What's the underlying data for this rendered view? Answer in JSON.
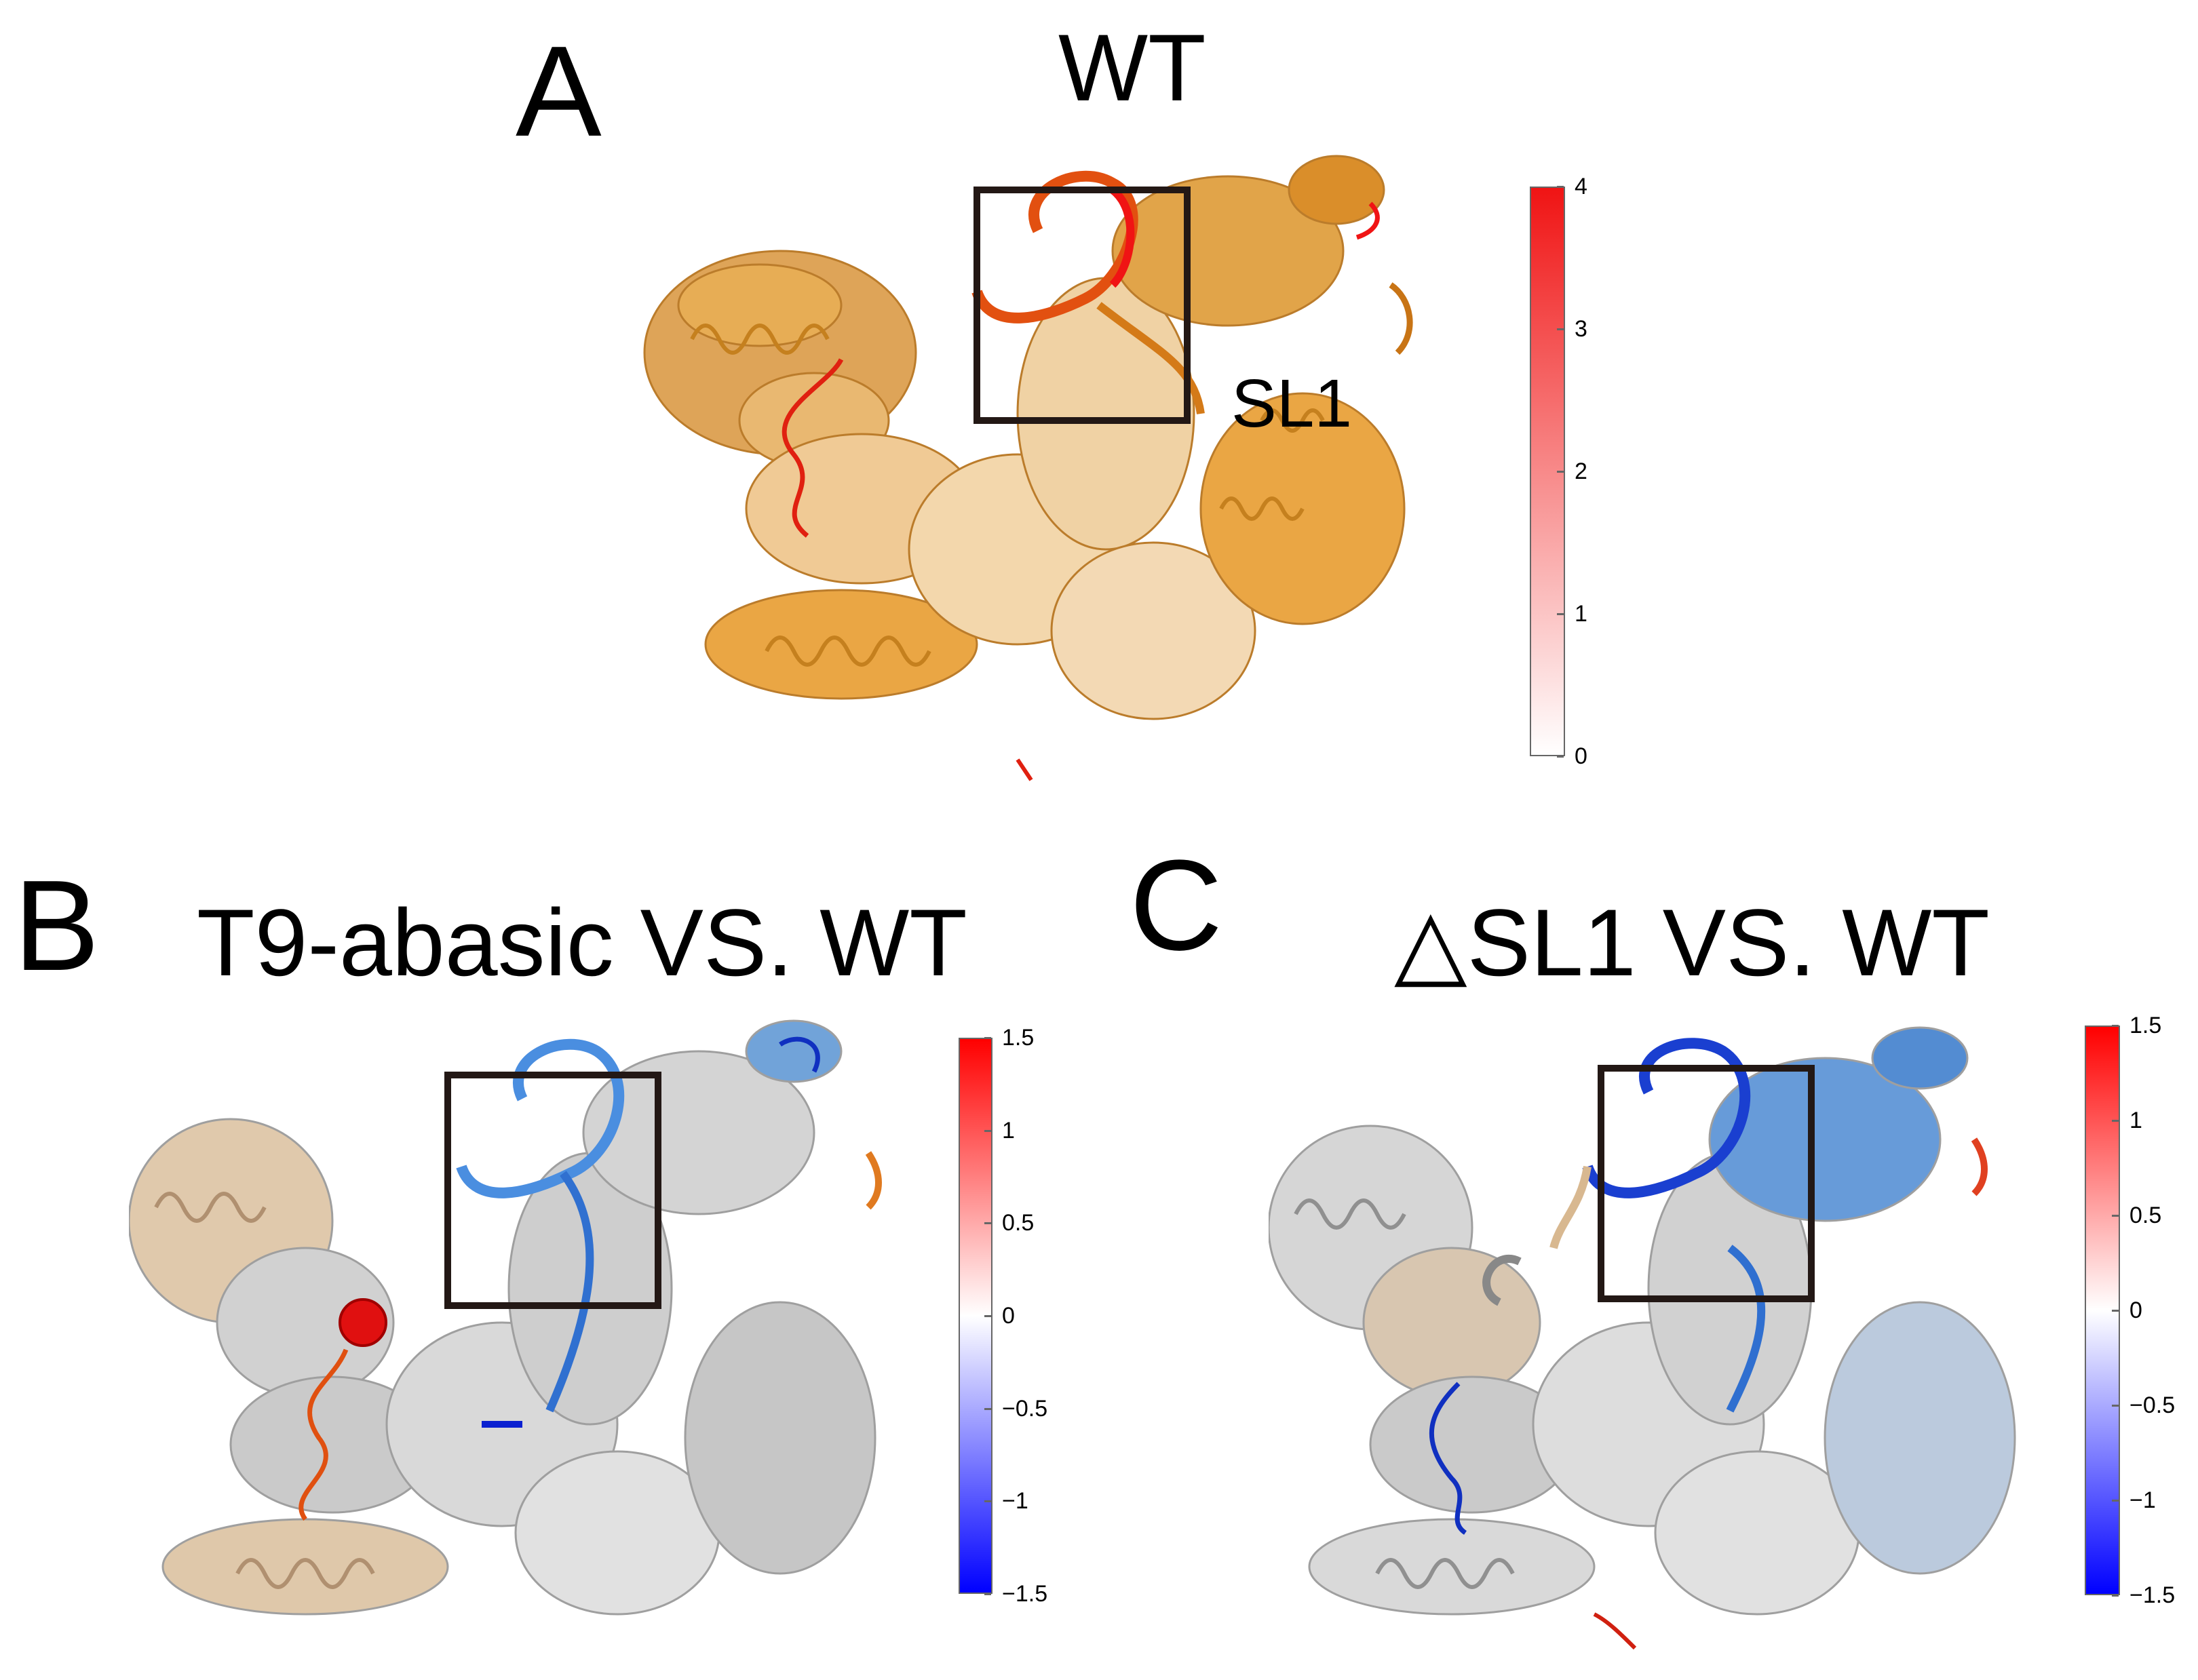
{
  "panels": [
    {
      "letter": "A",
      "title": "WT",
      "annotation": "SL1",
      "colorbar": {
        "ticks": [
          "4",
          "3",
          "2",
          "1",
          "0"
        ],
        "colors": [
          "#f01414",
          "#ffffff"
        ]
      },
      "structure_color": "#e9a23a"
    },
    {
      "letter": "B",
      "title": "T9-abasic VS. WT",
      "colorbar": {
        "ticks": [
          "1.5",
          "1",
          "0.5",
          "0",
          "−0.5",
          "−1",
          "−1.5"
        ],
        "colors": [
          "#ff0000",
          "#ffffff",
          "#0000ff"
        ]
      },
      "structure_color": "#c8c8c8"
    },
    {
      "letter": "C",
      "title": "△SL1 VS. WT",
      "colorbar": {
        "ticks": [
          "1.5",
          "1",
          "0.5",
          "0",
          "−0.5",
          "−1",
          "−1.5"
        ],
        "colors": [
          "#ff0000",
          "#ffffff",
          "#0000ff"
        ]
      },
      "structure_color": "#c8c8c8"
    }
  ]
}
